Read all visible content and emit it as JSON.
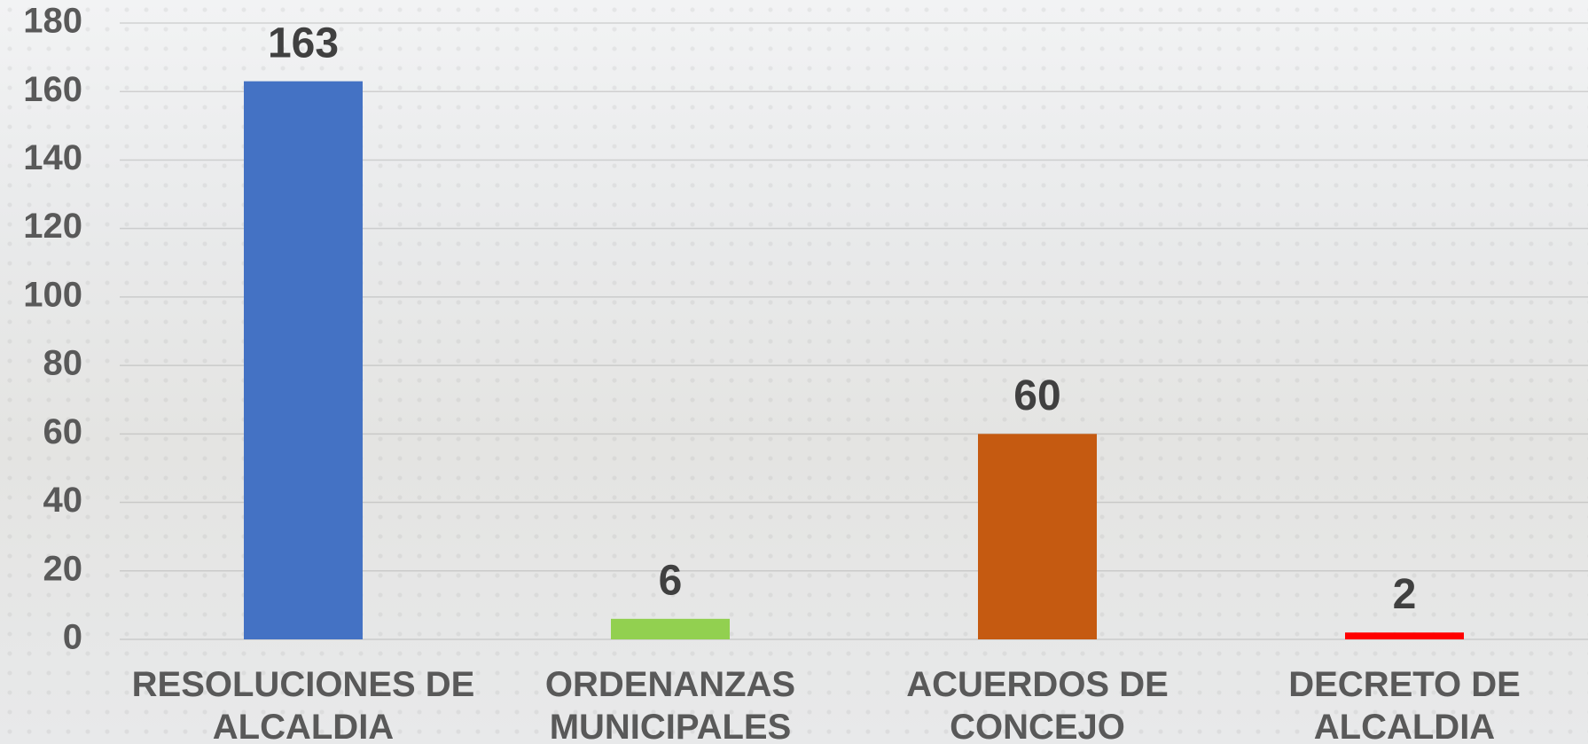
{
  "chart_data": {
    "type": "bar",
    "categories": [
      "RESOLUCIONES DE ALCALDIA",
      "ORDENANZAS MUNICIPALES",
      "ACUERDOS DE CONCEJO",
      "DECRETO DE ALCALDIA"
    ],
    "values": [
      163,
      6,
      60,
      2
    ],
    "colors": [
      "#4472c4",
      "#92d050",
      "#c55a11",
      "#ff0000"
    ],
    "ylim": [
      0,
      180
    ],
    "yticks": [
      0,
      20,
      40,
      60,
      80,
      100,
      120,
      140,
      160,
      180
    ],
    "grid": true
  }
}
